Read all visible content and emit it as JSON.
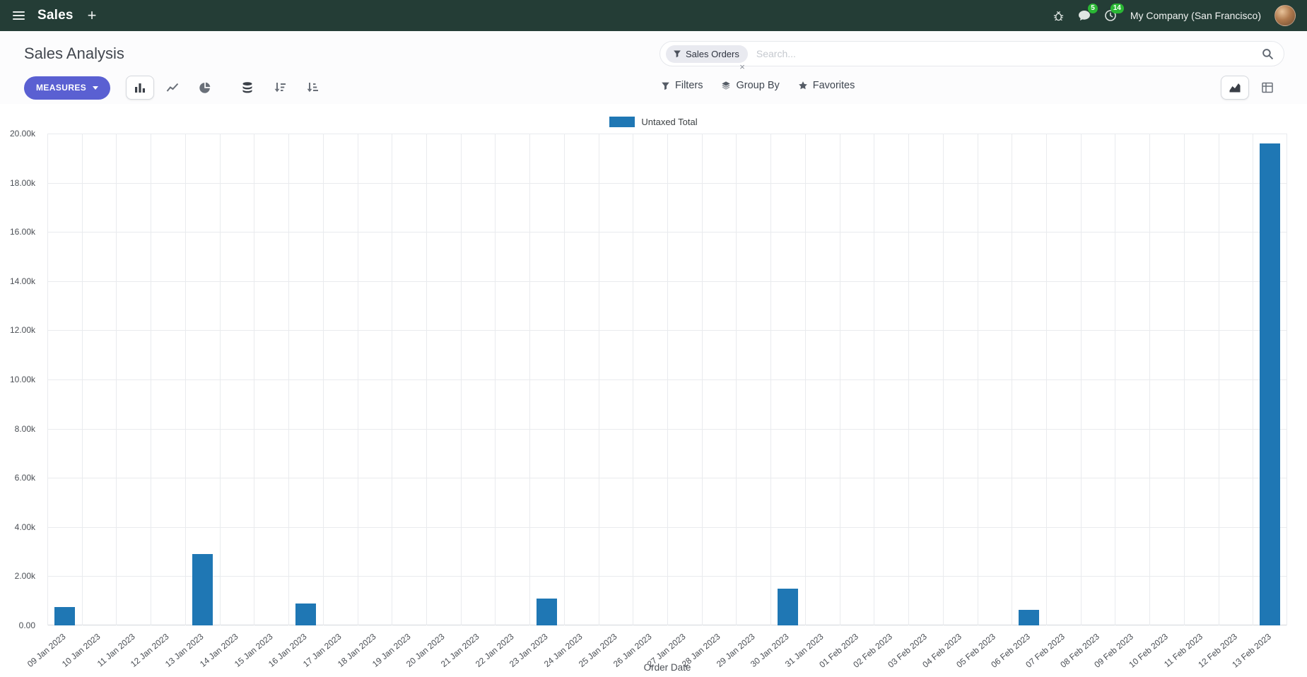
{
  "colors": {
    "navbar_bg": "#243d36",
    "primary": "#5a60d2",
    "bar": "#1f77b4",
    "badge_green": "#2ab734"
  },
  "navbar": {
    "app_name": "Sales",
    "messages_badge": "5",
    "activities_badge": "14",
    "company": "My Company (San Francisco)"
  },
  "control_panel": {
    "title": "Sales Analysis",
    "measures_label": "MEASURES",
    "search": {
      "facet_label": "Sales Orders",
      "facet_remove": "×",
      "placeholder": "Search..."
    },
    "filters_label": "Filters",
    "group_by_label": "Group By",
    "favorites_label": "Favorites"
  },
  "chart_data": {
    "type": "bar",
    "title": "",
    "xlabel": "Order Date",
    "ylabel": "",
    "legend_position": "top",
    "grid": true,
    "ylim": [
      0,
      20000
    ],
    "ytick_labels": [
      "0.00",
      "2.00k",
      "4.00k",
      "6.00k",
      "8.00k",
      "10.00k",
      "12.00k",
      "14.00k",
      "16.00k",
      "18.00k",
      "20.00k"
    ],
    "categories": [
      "09 Jan 2023",
      "10 Jan 2023",
      "11 Jan 2023",
      "12 Jan 2023",
      "13 Jan 2023",
      "14 Jan 2023",
      "15 Jan 2023",
      "16 Jan 2023",
      "17 Jan 2023",
      "18 Jan 2023",
      "19 Jan 2023",
      "20 Jan 2023",
      "21 Jan 2023",
      "22 Jan 2023",
      "23 Jan 2023",
      "24 Jan 2023",
      "25 Jan 2023",
      "26 Jan 2023",
      "27 Jan 2023",
      "28 Jan 2023",
      "29 Jan 2023",
      "30 Jan 2023",
      "31 Jan 2023",
      "01 Feb 2023",
      "02 Feb 2023",
      "03 Feb 2023",
      "04 Feb 2023",
      "05 Feb 2023",
      "06 Feb 2023",
      "07 Feb 2023",
      "08 Feb 2023",
      "09 Feb 2023",
      "10 Feb 2023",
      "11 Feb 2023",
      "12 Feb 2023",
      "13 Feb 2023"
    ],
    "series": [
      {
        "name": "Untaxed Total",
        "color": "#1f77b4",
        "values": [
          750,
          0,
          0,
          0,
          2900,
          0,
          0,
          900,
          0,
          0,
          0,
          0,
          0,
          0,
          1080,
          0,
          0,
          0,
          0,
          0,
          0,
          1500,
          0,
          0,
          0,
          0,
          0,
          0,
          620,
          0,
          0,
          0,
          0,
          0,
          0,
          19600
        ]
      }
    ]
  }
}
